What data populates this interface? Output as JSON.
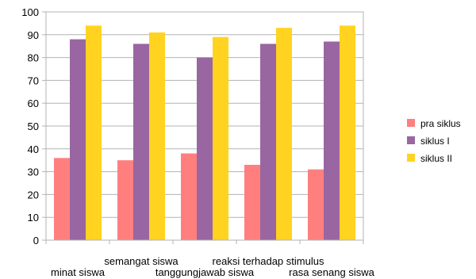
{
  "chart_data": {
    "type": "bar",
    "title": "",
    "xlabel": "",
    "ylabel": "",
    "ylim": [
      0,
      100
    ],
    "yticks": [
      0,
      10,
      20,
      30,
      40,
      50,
      60,
      70,
      80,
      90,
      100
    ],
    "grid": "horizontal-major",
    "legend_position": "right",
    "categories": [
      "minat siswa",
      "semangat siswa",
      "tanggungjawab siswa",
      "reaksi terhadap stimulus",
      "rasa senang siswa"
    ],
    "series": [
      {
        "name": "pra siklus",
        "color": "#FF7F7F",
        "values": [
          36,
          35,
          38,
          33,
          31
        ]
      },
      {
        "name": "siklus I",
        "color": "#9966A2",
        "values": [
          88,
          86,
          80,
          86,
          87
        ]
      },
      {
        "name": "siklus II",
        "color": "#FFD320",
        "values": [
          94,
          91,
          89,
          93,
          94
        ]
      }
    ]
  }
}
